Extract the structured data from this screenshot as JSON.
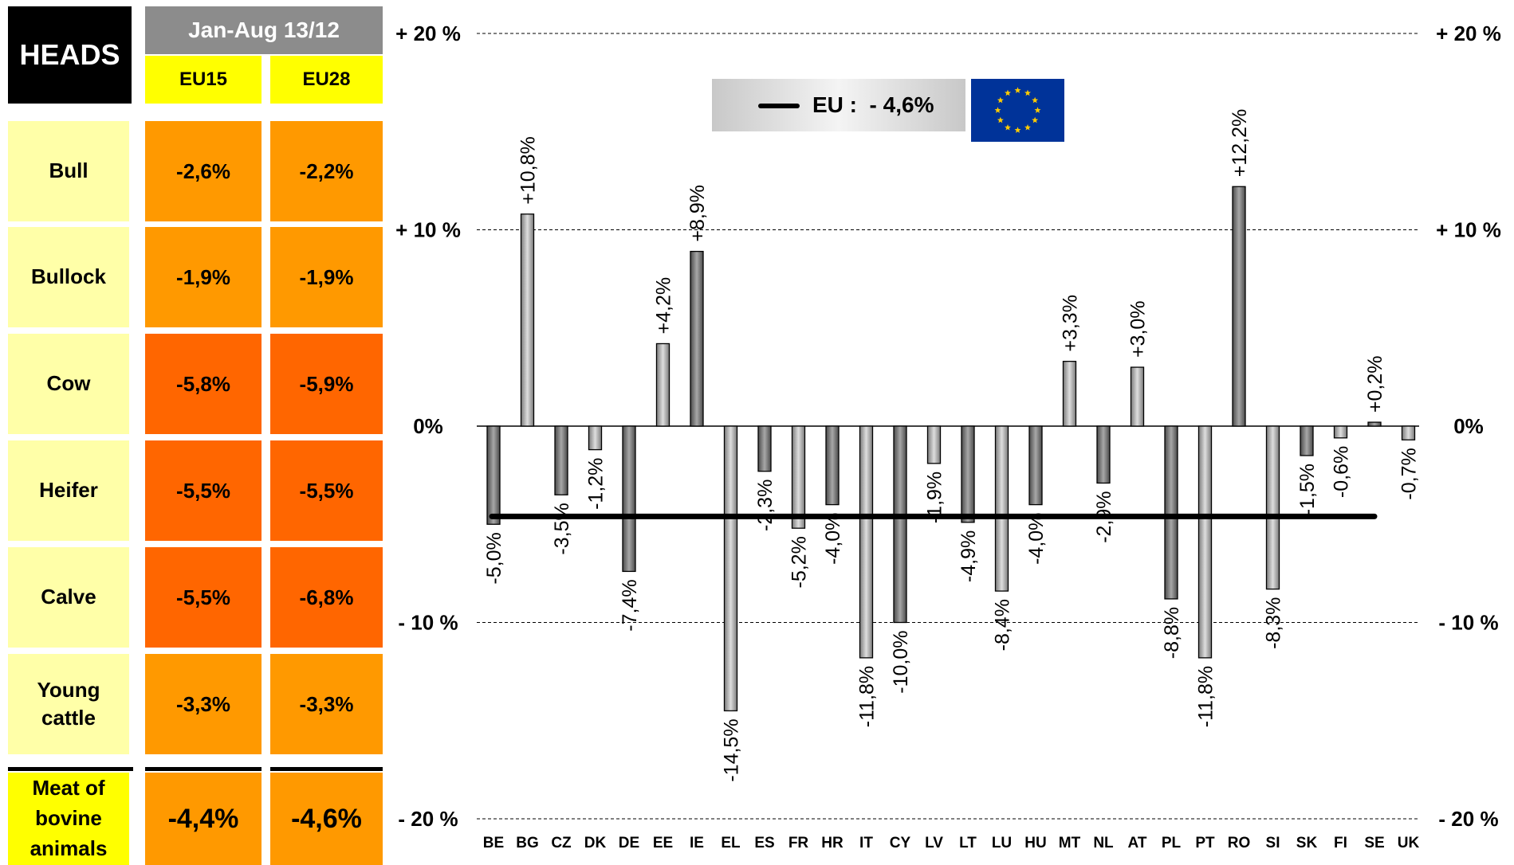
{
  "table": {
    "heads_label": "HEADS",
    "period_label": "Jan-Aug 13/12",
    "col_eu15": "EU15",
    "col_eu28": "EU28",
    "rows": [
      {
        "label": "Bull",
        "eu15": "-2,6%",
        "eu28": "-2,2%",
        "color15": "#ff9900",
        "color28": "#ff9900"
      },
      {
        "label": "Bullock",
        "eu15": "-1,9%",
        "eu28": "-1,9%",
        "color15": "#ff9900",
        "color28": "#ff9900"
      },
      {
        "label": "Cow",
        "eu15": "-5,8%",
        "eu28": "-5,9%",
        "color15": "#ff6600",
        "color28": "#ff6600"
      },
      {
        "label": "Heifer",
        "eu15": "-5,5%",
        "eu28": "-5,5%",
        "color15": "#ff6600",
        "color28": "#ff6600"
      },
      {
        "label": "Calve",
        "eu15": "-5,5%",
        "eu28": "-6,8%",
        "color15": "#ff6600",
        "color28": "#ff6600"
      },
      {
        "label": "Young cattle",
        "eu15": "-3,3%",
        "eu28": "-3,3%",
        "color15": "#ff9900",
        "color28": "#ff9900"
      }
    ],
    "total": {
      "label": "Meat of bovine animals",
      "eu15": "-4,4%",
      "eu28": "-4,6%"
    }
  },
  "legend": {
    "text": "EU :  - 4,6%"
  },
  "colors": {
    "orange_light": "#ff9900",
    "orange_dark": "#ff6600",
    "yellow": "#ffff00",
    "pale_yellow": "#ffffa8",
    "flag_blue": "#003399",
    "flag_star": "#ffcc00"
  },
  "chart_data": {
    "type": "bar",
    "categories": [
      "BE",
      "BG",
      "CZ",
      "DK",
      "DE",
      "EE",
      "IE",
      "EL",
      "ES",
      "FR",
      "HR",
      "IT",
      "CY",
      "LV",
      "LT",
      "LU",
      "HU",
      "MT",
      "NL",
      "AT",
      "PL",
      "PT",
      "RO",
      "SI",
      "SK",
      "FI",
      "SE",
      "UK"
    ],
    "values": [
      -5.0,
      10.8,
      -3.5,
      -1.2,
      -7.4,
      4.2,
      8.9,
      -14.5,
      -2.3,
      -5.2,
      -4.0,
      -11.8,
      -10.0,
      -1.9,
      -4.9,
      -8.4,
      -4.0,
      3.3,
      -2.9,
      3.0,
      -8.8,
      -11.8,
      12.2,
      -8.3,
      -1.5,
      -0.6,
      0.2,
      -0.7
    ],
    "data_labels": [
      "-5,0%",
      "+10,8%",
      "-3,5%",
      "-1,2%",
      "-7,4%",
      "+4,2%",
      "+8,9%",
      "-14,5%",
      "-2,3%",
      "-5,2%",
      "-4,0%",
      "-11,8%",
      "-10,0%",
      "-1,9%",
      "-4,9%",
      "-8,4%",
      "-4,0%",
      "+3,3%",
      "-2,9%",
      "+3,0%",
      "-8,8%",
      "-11,8%",
      "+12,2%",
      "-8,3%",
      "-1,5%",
      "-0,6%",
      "+0,2%",
      "-0,7%"
    ],
    "reference_line": {
      "value": -4.6
    },
    "ylim": [
      -20,
      20
    ],
    "yticks": [
      20,
      10,
      0,
      -10,
      -20
    ],
    "ytick_labels": [
      "+ 20 %",
      "+ 10 %",
      "0%",
      "- 10 %",
      "- 20 %"
    ],
    "grid": true
  }
}
